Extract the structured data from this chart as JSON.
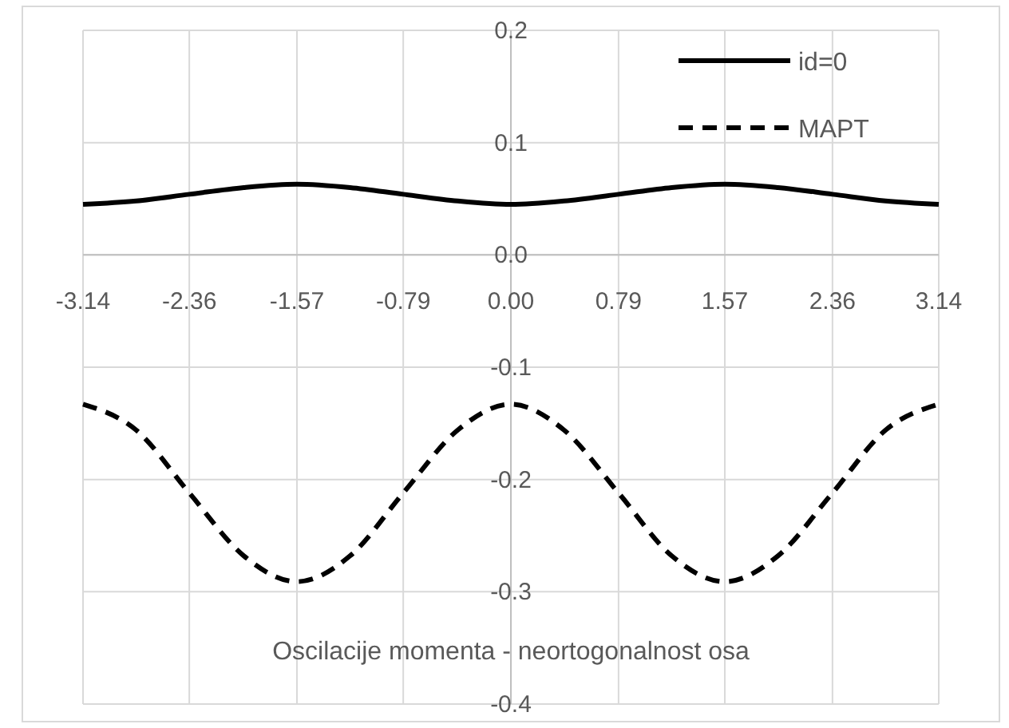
{
  "chart_data": {
    "type": "line",
    "title": "Oscilacije momenta - neortogonalnost osa",
    "x": [
      -3.14,
      -2.75,
      -2.36,
      -1.96,
      -1.57,
      -1.18,
      -0.79,
      -0.39,
      0,
      0.39,
      0.79,
      1.18,
      1.57,
      1.96,
      2.36,
      2.75,
      3.14
    ],
    "series": [
      {
        "name": "id=0",
        "color": "#000000",
        "line_style": "solid",
        "values": [
          0.045,
          0.048,
          0.054,
          0.06,
          0.063,
          0.06,
          0.054,
          0.048,
          0.045,
          0.048,
          0.054,
          0.06,
          0.063,
          0.06,
          0.054,
          0.048,
          0.045
        ]
      },
      {
        "name": "MAPT",
        "color": "#000000",
        "line_style": "dashed",
        "values": [
          -0.133,
          -0.156,
          -0.212,
          -0.268,
          -0.291,
          -0.268,
          -0.212,
          -0.156,
          -0.133,
          -0.156,
          -0.212,
          -0.268,
          -0.291,
          -0.268,
          -0.212,
          -0.156,
          -0.133
        ]
      }
    ],
    "xlim": [
      -3.14,
      3.14
    ],
    "xticks": [
      -3.14,
      -2.36,
      -1.57,
      -0.79,
      {
        "value": 0,
        "label": "0.00"
      },
      0.79,
      1.57,
      2.36,
      3.14
    ],
    "ylim": [
      -0.4,
      0.2
    ],
    "yticks": [
      -0.4,
      -0.3,
      -0.2,
      -0.1,
      {
        "value": 0,
        "label": "0.0"
      },
      0.1,
      0.2
    ],
    "grid": true,
    "legend": "top right",
    "marker": "none"
  }
}
